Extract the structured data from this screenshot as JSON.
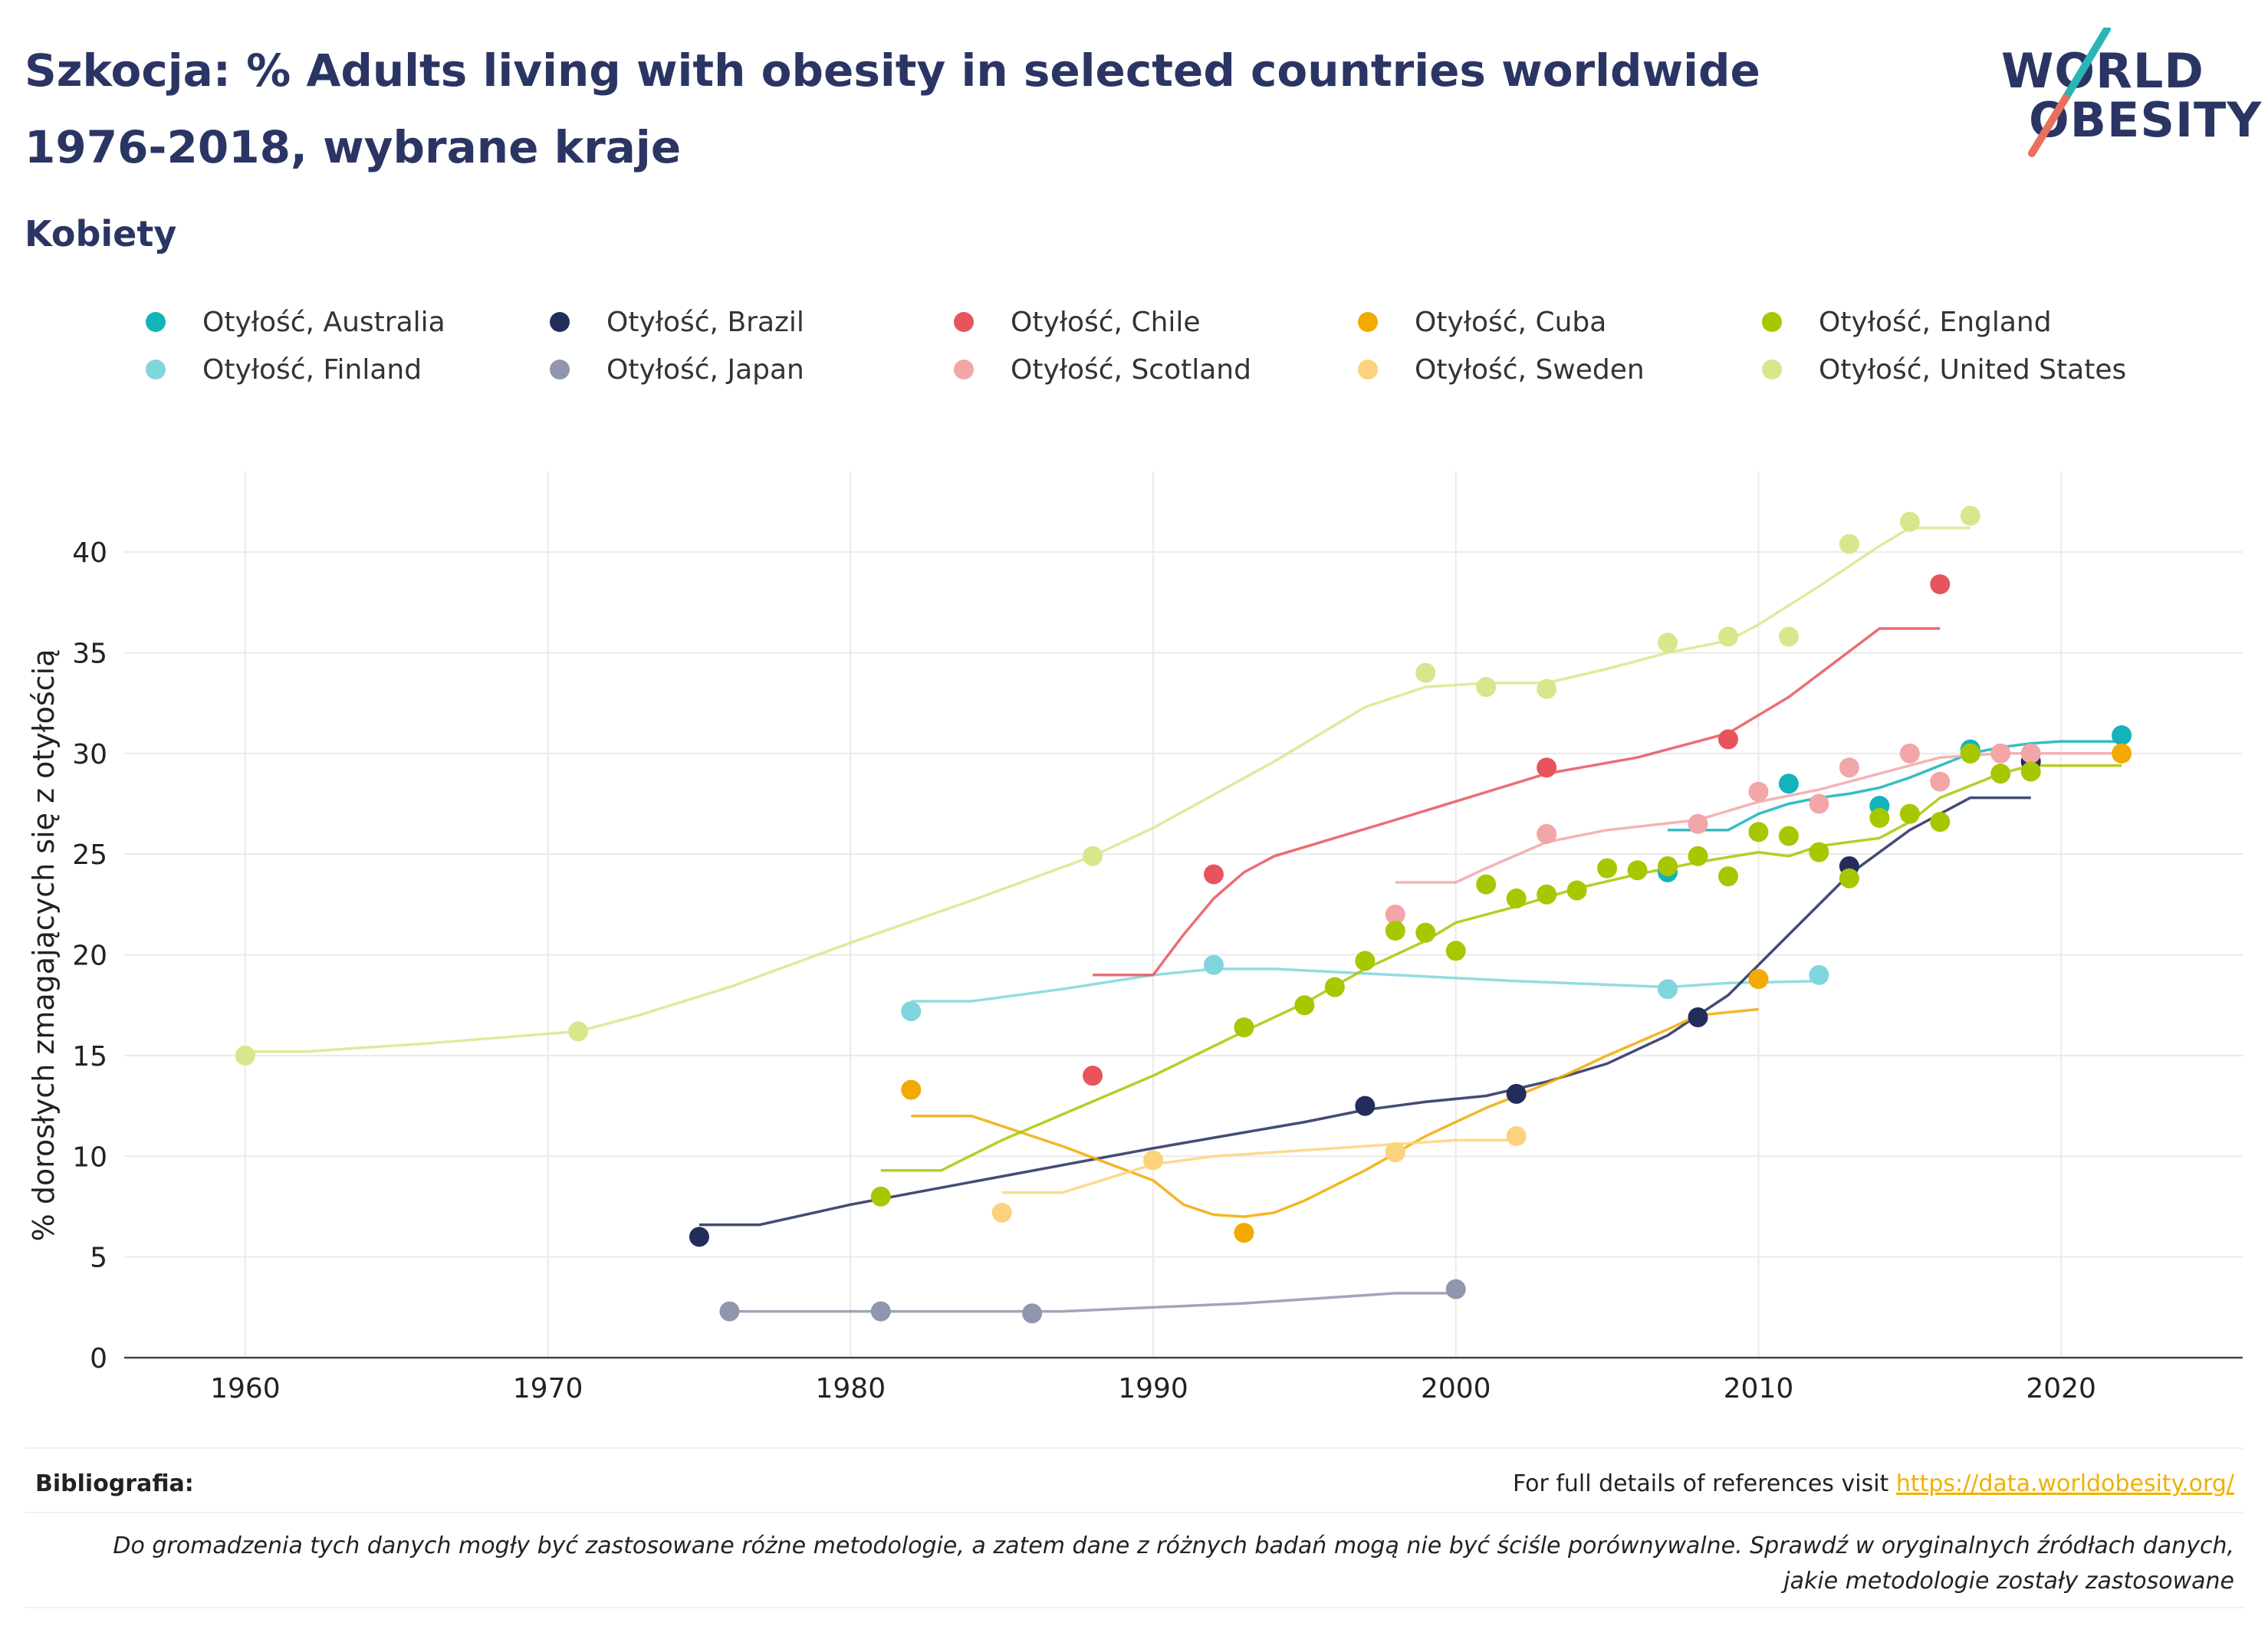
{
  "header": {
    "title_line1": "Szkocja: % Adults living with obesity in selected countries worldwide",
    "title_line2": "1976-2018, wybrane kraje",
    "subtitle": "Kobiety"
  },
  "logo": {
    "line1": "WORLD",
    "line2": "OBESITY",
    "accent_teal": "#2bb5b5",
    "accent_coral": "#e8705c"
  },
  "footer": {
    "biblio_label": "Bibliografia:",
    "refs_text": "For full details of references visit ",
    "refs_link": "https://data.worldobesity.org/",
    "note": "Do gromadzenia tych danych mogły być zastosowane różne metodologie, a zatem dane z różnych badań mogą nie być ściśle porównywalne. Sprawdź w oryginalnych źródłach danych, jakie metodologie zostały zastosowane"
  },
  "chart_data": {
    "type": "scatter",
    "title": "Szkocja: % Adults living with obesity in selected countries worldwide 1976-2018, wybrane kraje",
    "subtitle": "Kobiety",
    "xlabel": "",
    "ylabel": "% dorosłych zmagających się z otyłością",
    "xlim": [
      1956,
      2026
    ],
    "ylim": [
      0,
      44
    ],
    "xticks": [
      1960,
      1970,
      1980,
      1990,
      2000,
      2010,
      2020
    ],
    "yticks": [
      0,
      5,
      10,
      15,
      20,
      25,
      30,
      35,
      40
    ],
    "grid": true,
    "legend_position": "top",
    "series": [
      {
        "name": "Otyłość, Australia",
        "color": "#12b3b9",
        "points": [
          [
            2007,
            24.1
          ],
          [
            2011,
            28.5
          ],
          [
            2014,
            27.4
          ],
          [
            2017,
            30.2
          ],
          [
            2022,
            30.9
          ]
        ],
        "trend": [
          [
            2007,
            26.2
          ],
          [
            2009,
            26.2
          ],
          [
            2010,
            27.0
          ],
          [
            2011,
            27.5
          ],
          [
            2012,
            27.8
          ],
          [
            2013,
            28.0
          ],
          [
            2014,
            28.3
          ],
          [
            2015,
            28.8
          ],
          [
            2016,
            29.4
          ],
          [
            2017,
            30.0
          ],
          [
            2018,
            30.3
          ],
          [
            2019,
            30.5
          ],
          [
            2020,
            30.6
          ],
          [
            2022,
            30.6
          ]
        ]
      },
      {
        "name": "Otyłość, Finland",
        "color": "#7fd6dc",
        "points": [
          [
            1982,
            17.2
          ],
          [
            1992,
            19.5
          ],
          [
            2007,
            18.3
          ],
          [
            2012,
            19.0
          ]
        ],
        "trend": [
          [
            1982,
            17.7
          ],
          [
            1984,
            17.7
          ],
          [
            1987,
            18.3
          ],
          [
            1990,
            19.0
          ],
          [
            1992,
            19.3
          ],
          [
            1994,
            19.3
          ],
          [
            1998,
            19.0
          ],
          [
            2002,
            18.7
          ],
          [
            2007,
            18.4
          ],
          [
            2009,
            18.6
          ],
          [
            2012,
            18.7
          ]
        ]
      },
      {
        "name": "Otyłość, Brazil",
        "color": "#222d5c",
        "points": [
          [
            1975,
            6.0
          ],
          [
            1997,
            12.5
          ],
          [
            2002,
            13.1
          ],
          [
            2008,
            16.9
          ],
          [
            2013,
            24.4
          ],
          [
            2019,
            29.6
          ]
        ],
        "trend": [
          [
            1975,
            6.6
          ],
          [
            1977,
            6.6
          ],
          [
            1980,
            7.6
          ],
          [
            1985,
            9.0
          ],
          [
            1990,
            10.4
          ],
          [
            1995,
            11.7
          ],
          [
            1997,
            12.3
          ],
          [
            1999,
            12.7
          ],
          [
            2001,
            13.0
          ],
          [
            2003,
            13.7
          ],
          [
            2005,
            14.6
          ],
          [
            2007,
            16.0
          ],
          [
            2009,
            18.0
          ],
          [
            2011,
            21.0
          ],
          [
            2013,
            24.0
          ],
          [
            2015,
            26.2
          ],
          [
            2017,
            27.8
          ],
          [
            2019,
            27.8
          ]
        ]
      },
      {
        "name": "Otyłość, Japan",
        "color": "#8f96ad",
        "points": [
          [
            1976,
            2.3
          ],
          [
            1981,
            2.3
          ],
          [
            1986,
            2.2
          ],
          [
            2000,
            3.4
          ]
        ],
        "trend": [
          [
            1976,
            2.3
          ],
          [
            1981,
            2.3
          ],
          [
            1987,
            2.3
          ],
          [
            1993,
            2.7
          ],
          [
            1998,
            3.2
          ],
          [
            2000,
            3.2
          ]
        ]
      },
      {
        "name": "Otyłość, Chile",
        "color": "#e8545c",
        "points": [
          [
            1988,
            14.0
          ],
          [
            1992,
            24.0
          ],
          [
            2003,
            29.3
          ],
          [
            2009,
            30.7
          ],
          [
            2016,
            38.4
          ]
        ],
        "trend": [
          [
            1988,
            19.0
          ],
          [
            1990,
            19.0
          ],
          [
            1991,
            21.0
          ],
          [
            1992,
            22.8
          ],
          [
            1993,
            24.1
          ],
          [
            1994,
            24.9
          ],
          [
            1998,
            26.7
          ],
          [
            2003,
            29.0
          ],
          [
            2006,
            29.8
          ],
          [
            2009,
            31.0
          ],
          [
            2011,
            32.8
          ],
          [
            2014,
            36.2
          ],
          [
            2016,
            36.2
          ]
        ]
      },
      {
        "name": "Otyłość, Scotland",
        "color": "#f2a6a8",
        "points": [
          [
            1998,
            22.0
          ],
          [
            2003,
            26.0
          ],
          [
            2008,
            26.5
          ],
          [
            2010,
            28.1
          ],
          [
            2012,
            27.5
          ],
          [
            2013,
            29.3
          ],
          [
            2015,
            30.0
          ],
          [
            2016,
            28.6
          ],
          [
            2018,
            30.0
          ],
          [
            2019,
            30.0
          ]
        ],
        "trend": [
          [
            1998,
            23.6
          ],
          [
            2000,
            23.6
          ],
          [
            2001,
            24.3
          ],
          [
            2003,
            25.6
          ],
          [
            2005,
            26.2
          ],
          [
            2008,
            26.7
          ],
          [
            2010,
            27.6
          ],
          [
            2012,
            28.2
          ],
          [
            2014,
            29.0
          ],
          [
            2016,
            29.8
          ],
          [
            2018,
            30.0
          ],
          [
            2022,
            30.0
          ]
        ]
      },
      {
        "name": "Otyłość, Cuba",
        "color": "#f2a900",
        "points": [
          [
            1982,
            13.3
          ],
          [
            1993,
            6.2
          ],
          [
            1998,
            10.2
          ],
          [
            2010,
            18.8
          ],
          [
            2017,
            30.0
          ],
          [
            2022,
            30.0
          ]
        ],
        "trend": [
          [
            1982,
            12.0
          ],
          [
            1984,
            12.0
          ],
          [
            1987,
            10.5
          ],
          [
            1990,
            8.8
          ],
          [
            1991,
            7.6
          ],
          [
            1992,
            7.1
          ],
          [
            1993,
            7.0
          ],
          [
            1994,
            7.2
          ],
          [
            1995,
            7.8
          ],
          [
            1997,
            9.3
          ],
          [
            1999,
            11.0
          ],
          [
            2001,
            12.4
          ],
          [
            2003,
            13.6
          ],
          [
            2005,
            15.0
          ],
          [
            2007,
            16.3
          ],
          [
            2008,
            17.0
          ],
          [
            2010,
            17.3
          ]
        ]
      },
      {
        "name": "Otyłość, Sweden",
        "color": "#fbd37c",
        "points": [
          [
            1985,
            7.2
          ],
          [
            1990,
            9.8
          ],
          [
            1998,
            10.2
          ],
          [
            2002,
            11.0
          ]
        ],
        "trend": [
          [
            1985,
            8.2
          ],
          [
            1987,
            8.2
          ],
          [
            1990,
            9.6
          ],
          [
            1992,
            10.0
          ],
          [
            1998,
            10.6
          ],
          [
            2000,
            10.8
          ],
          [
            2002,
            10.8
          ]
        ]
      },
      {
        "name": "Otyłość, England",
        "color": "#a7c700",
        "points": [
          [
            1981,
            8.0
          ],
          [
            1993,
            16.4
          ],
          [
            1995,
            17.5
          ],
          [
            1996,
            18.4
          ],
          [
            1997,
            19.7
          ],
          [
            1998,
            21.2
          ],
          [
            1999,
            21.1
          ],
          [
            2000,
            20.2
          ],
          [
            2001,
            23.5
          ],
          [
            2002,
            22.8
          ],
          [
            2003,
            23.0
          ],
          [
            2004,
            23.2
          ],
          [
            2005,
            24.3
          ],
          [
            2006,
            24.2
          ],
          [
            2007,
            24.4
          ],
          [
            2008,
            24.9
          ],
          [
            2009,
            23.9
          ],
          [
            2010,
            26.1
          ],
          [
            2011,
            25.9
          ],
          [
            2012,
            25.1
          ],
          [
            2013,
            23.8
          ],
          [
            2014,
            26.8
          ],
          [
            2015,
            27.0
          ],
          [
            2016,
            26.6
          ],
          [
            2017,
            30.0
          ],
          [
            2018,
            29.0
          ],
          [
            2019,
            29.1
          ]
        ],
        "trend": [
          [
            1981,
            9.3
          ],
          [
            1983,
            9.3
          ],
          [
            1985,
            10.8
          ],
          [
            1990,
            14.0
          ],
          [
            1993,
            16.2
          ],
          [
            1995,
            17.6
          ],
          [
            1997,
            19.3
          ],
          [
            1999,
            20.7
          ],
          [
            2000,
            21.6
          ],
          [
            2002,
            22.4
          ],
          [
            2004,
            23.3
          ],
          [
            2006,
            24.0
          ],
          [
            2008,
            24.6
          ],
          [
            2010,
            25.1
          ],
          [
            2011,
            24.9
          ],
          [
            2012,
            25.4
          ],
          [
            2014,
            25.8
          ],
          [
            2015,
            26.6
          ],
          [
            2016,
            27.8
          ],
          [
            2018,
            29.0
          ],
          [
            2019,
            29.4
          ],
          [
            2022,
            29.4
          ]
        ]
      },
      {
        "name": "Otyłość, United States",
        "color": "#d9e68c",
        "points": [
          [
            1960,
            15.0
          ],
          [
            1971,
            16.2
          ],
          [
            1988,
            24.9
          ],
          [
            1999,
            34.0
          ],
          [
            2001,
            33.3
          ],
          [
            2003,
            33.2
          ],
          [
            2007,
            35.5
          ],
          [
            2009,
            35.8
          ],
          [
            2011,
            35.8
          ],
          [
            2013,
            40.4
          ],
          [
            2015,
            41.5
          ],
          [
            2017,
            41.8
          ]
        ],
        "trend": [
          [
            1960,
            15.2
          ],
          [
            1962,
            15.2
          ],
          [
            1966,
            15.6
          ],
          [
            1971,
            16.2
          ],
          [
            1973,
            17.0
          ],
          [
            1976,
            18.4
          ],
          [
            1980,
            20.6
          ],
          [
            1984,
            22.7
          ],
          [
            1988,
            24.9
          ],
          [
            1990,
            26.3
          ],
          [
            1994,
            29.6
          ],
          [
            1997,
            32.3
          ],
          [
            1999,
            33.3
          ],
          [
            2001,
            33.5
          ],
          [
            2003,
            33.5
          ],
          [
            2005,
            34.2
          ],
          [
            2007,
            35.0
          ],
          [
            2009,
            35.6
          ],
          [
            2010,
            36.4
          ],
          [
            2012,
            38.3
          ],
          [
            2014,
            40.3
          ],
          [
            2015,
            41.2
          ],
          [
            2017,
            41.2
          ]
        ]
      }
    ]
  }
}
